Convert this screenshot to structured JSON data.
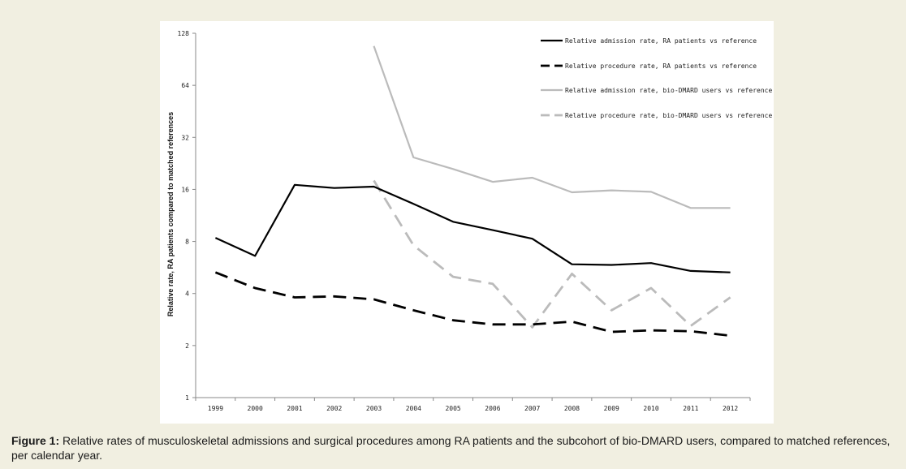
{
  "caption": {
    "label": "Figure 1:",
    "text": " Relative rates of musculoskeletal admissions and surgical procedures among RA patients and the subcohort of bio-DMARD users, compared to matched references, per calendar year."
  },
  "chart_data": {
    "type": "line",
    "title": "",
    "xlabel": "",
    "ylabel": "Relative rate, RA patients compared to matched references",
    "y_scale": "log2",
    "ylim": [
      1,
      128
    ],
    "y_ticks": [
      1,
      2,
      4,
      8,
      16,
      32,
      64,
      128
    ],
    "y_tick_labels": [
      "1",
      "2",
      "4",
      "8",
      "16",
      "32",
      "64",
      "128"
    ],
    "categories": [
      "1999",
      "2000",
      "2001",
      "2002",
      "2003",
      "2004",
      "2005",
      "2006",
      "2007",
      "2008",
      "2009",
      "2010",
      "2011",
      "2012"
    ],
    "grid": false,
    "legend_position": "top-right",
    "series": [
      {
        "name": "Relative admission rate, RA patients vs reference",
        "color": "#000000",
        "dash": "solid",
        "values": [
          8.4,
          6.6,
          17.0,
          16.3,
          16.6,
          13.2,
          10.4,
          9.3,
          8.3,
          5.9,
          5.85,
          6.0,
          5.4,
          5.3
        ]
      },
      {
        "name": "Relative procedure rate, RA patients vs reference",
        "color": "#000000",
        "dash": "dashed",
        "values": [
          5.3,
          4.3,
          3.8,
          3.85,
          3.7,
          3.2,
          2.8,
          2.65,
          2.65,
          2.75,
          2.4,
          2.45,
          2.42,
          2.28
        ]
      },
      {
        "name": "Relative admission rate, bio-DMARD users vs reference",
        "color": "#bbbbbb",
        "dash": "solid",
        "values": [
          null,
          null,
          null,
          null,
          108,
          24.5,
          21.0,
          17.7,
          18.7,
          15.4,
          15.8,
          15.5,
          12.5,
          12.5
        ]
      },
      {
        "name": "Relative procedure rate, bio-DMARD users vs reference",
        "color": "#bbbbbb",
        "dash": "dashed",
        "values": [
          null,
          null,
          null,
          null,
          18.0,
          7.6,
          5.0,
          4.55,
          2.55,
          5.2,
          3.2,
          4.3,
          2.6,
          3.8
        ]
      }
    ]
  }
}
